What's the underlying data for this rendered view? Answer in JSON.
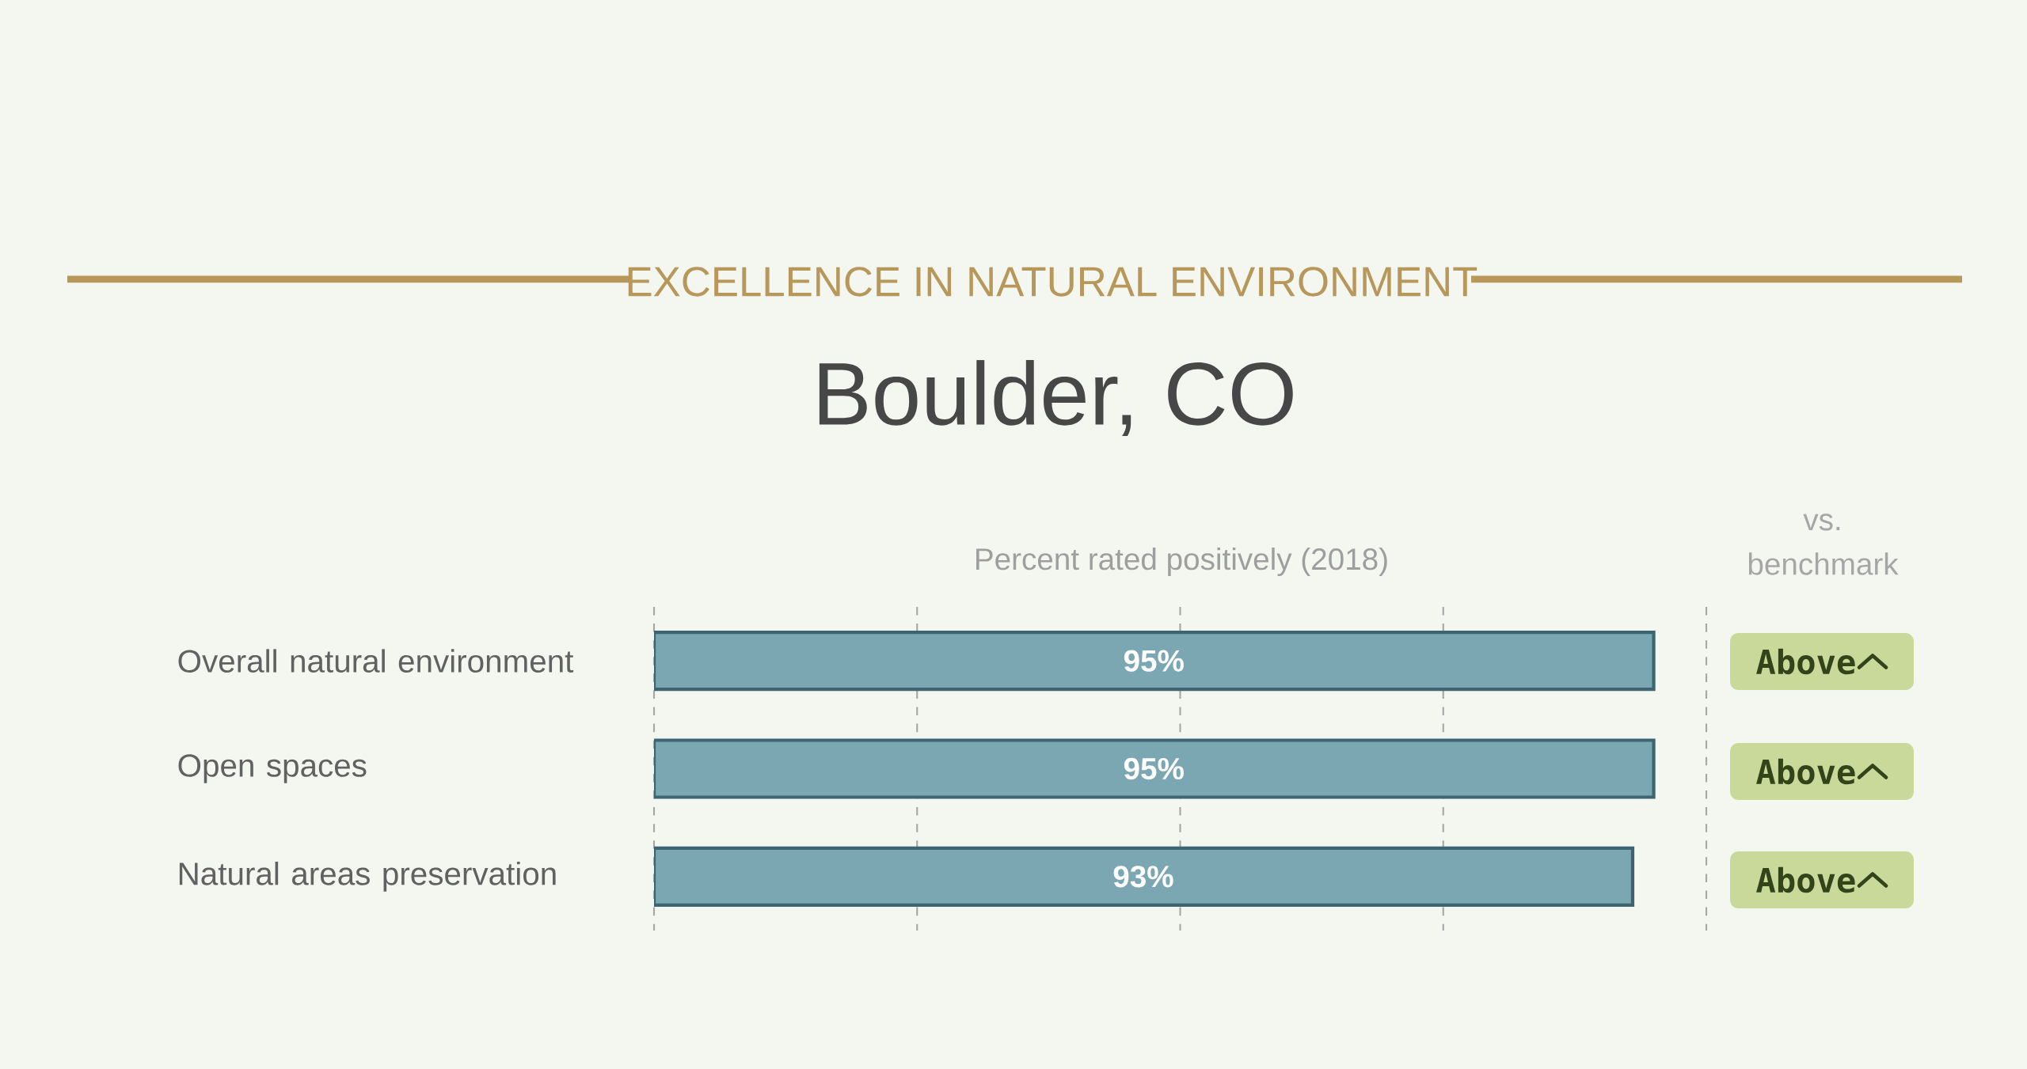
{
  "chart_data": {
    "type": "bar",
    "orientation": "horizontal",
    "title": "EXCELLENCE IN NATURAL ENVIRONMENT",
    "subtitle": "Boulder, CO",
    "categories": [
      "Overall natural environment",
      "Open spaces",
      "Natural areas preservation"
    ],
    "values": [
      95,
      95,
      93
    ],
    "value_labels": [
      "95%",
      "95%",
      "93%"
    ],
    "color": "#7ba7b3",
    "xlim": [
      0,
      100
    ],
    "xticks": [
      {
        "value": 0,
        "label": null
      },
      {
        "value": 25,
        "label": null
      },
      {
        "value": 50,
        "label": null
      },
      {
        "value": 75,
        "label": null
      },
      {
        "value": 100,
        "label": null
      }
    ],
    "grid": "x",
    "tick_labels": "y",
    "annotations": [
      "Percent rated positively (2018)",
      "vs. benchmark",
      "Above",
      "Above",
      "Above"
    ]
  }
}
